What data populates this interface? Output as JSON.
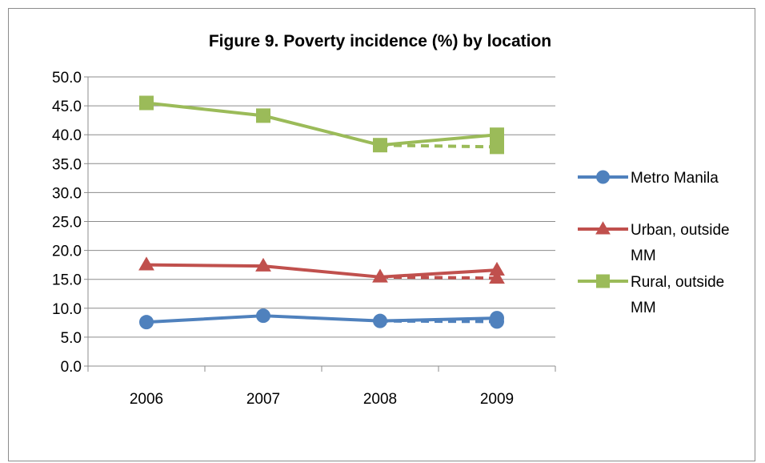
{
  "chart_data": {
    "type": "line",
    "title": "Figure 9. Poverty incidence (%) by location",
    "xlabel": "",
    "ylabel": "",
    "categories": [
      "2006",
      "2007",
      "2008",
      "2009"
    ],
    "ylim": [
      0,
      50
    ],
    "yticks": [
      "0.0",
      "5.0",
      "10.0",
      "15.0",
      "20.0",
      "25.0",
      "30.0",
      "35.0",
      "40.0",
      "45.0",
      "50.0"
    ],
    "grid": true,
    "legend_position": "right",
    "series": [
      {
        "name": "Metro Manila",
        "legend_lines": [
          "Metro Manila"
        ],
        "color": "#4F81BD",
        "marker": "circle",
        "values": [
          7.6,
          8.7,
          7.8,
          8.3
        ],
        "alt_2009": 7.7
      },
      {
        "name": "Urban, outside MM",
        "legend_lines": [
          "Urban, outside",
          "MM"
        ],
        "color": "#C0504D",
        "marker": "triangle",
        "values": [
          17.5,
          17.3,
          15.4,
          16.6
        ],
        "alt_2009": 15.2
      },
      {
        "name": "Rural, outside MM",
        "legend_lines": [
          "Rural, outside",
          "MM"
        ],
        "color": "#9BBB59",
        "marker": "square",
        "values": [
          45.5,
          43.3,
          38.2,
          40.0
        ],
        "alt_2009": 37.9
      }
    ]
  }
}
